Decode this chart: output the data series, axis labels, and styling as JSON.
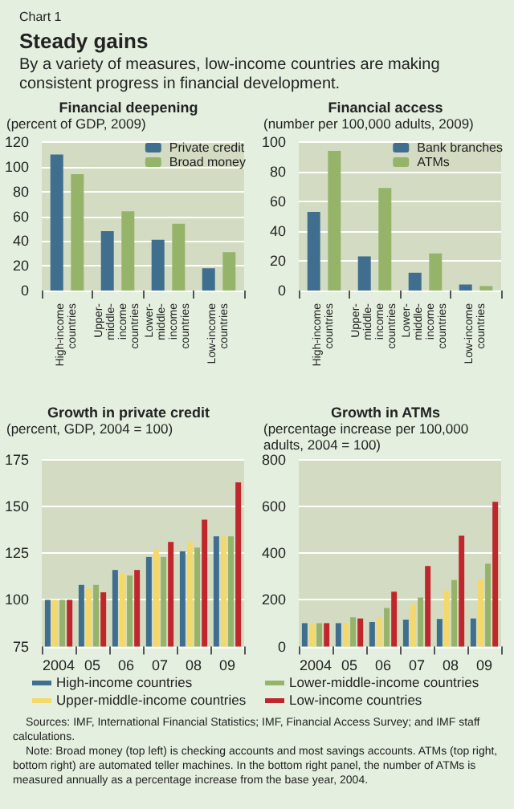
{
  "chart_data": [
    {
      "type": "bar",
      "title": "Financial deepening",
      "ylabel": "(percent of GDP, 2009)",
      "annotations": [
        "Chart 1",
        "Steady gains",
        "By a variety of measures, low-income countries are making consistent progress in financial development."
      ],
      "categories": [
        "High-income countries",
        "Upper-middle-income countries",
        "Lower-middle-income countries",
        "Low-income countries"
      ],
      "series": [
        {
          "name": "Private credit",
          "color": "#3f6e8e",
          "values": [
            110,
            48,
            41,
            18
          ]
        },
        {
          "name": "Broad money",
          "color": "#95b46a",
          "values": [
            94,
            64,
            54,
            31
          ]
        }
      ],
      "ylim": [
        0,
        120
      ],
      "yticks": [
        0,
        20,
        40,
        60,
        80,
        100,
        120
      ],
      "grid": "y",
      "legend": "top right"
    },
    {
      "type": "bar",
      "title": "Financial access",
      "ylabel": "(number per 100,000 adults, 2009)",
      "categories": [
        "High-income countries",
        "Upper-middle-income countries",
        "Lower-middle-income countries",
        "Low-income countries"
      ],
      "series": [
        {
          "name": "Bank branches",
          "color": "#3f6e8e",
          "values": [
            53,
            23,
            12,
            4
          ]
        },
        {
          "name": "ATMs",
          "color": "#95b46a",
          "values": [
            94,
            69,
            25,
            3
          ]
        }
      ],
      "ylim": [
        0,
        100
      ],
      "yticks": [
        0,
        20,
        40,
        60,
        80,
        100
      ],
      "grid": "y",
      "legend": "top right"
    },
    {
      "type": "bar",
      "title": "Growth in private credit",
      "ylabel": "(percent, GDP, 2004 = 100)",
      "categories": [
        "2004",
        "05",
        "06",
        "07",
        "08",
        "09"
      ],
      "series": [
        {
          "name": "High-income countries",
          "color": "#3f6e8e",
          "values": [
            100,
            108,
            116,
            123,
            126,
            134
          ]
        },
        {
          "name": "Upper-middle-income countries",
          "color": "#f5d86a",
          "values": [
            100,
            106,
            114,
            127,
            131,
            134
          ]
        },
        {
          "name": "Lower-middle-income countries",
          "color": "#95b46a",
          "values": [
            100,
            108,
            113,
            123,
            128,
            134
          ]
        },
        {
          "name": "Low-income countries",
          "color": "#c0272d",
          "values": [
            100,
            104,
            116,
            131,
            143,
            163
          ]
        }
      ],
      "ylim": [
        75,
        175
      ],
      "yticks": [
        75,
        100,
        125,
        150,
        175
      ],
      "grid": "y",
      "legend": "bottom"
    },
    {
      "type": "bar",
      "title": "Growth in ATMs",
      "ylabel": "(percentage increase per 100,000 adults, 2004 = 100)",
      "annotations": [
        "Sources: IMF, International Financial Statistics; IMF, Financial Access Survey; and IMF staff calculations.",
        "Note: Broad money (top left) is checking accounts and most savings accounts. ATMs (top right, bottom right) are automated teller machines. In the bottom right panel, the number of ATMs is measured annually as a percentage increase from the base year, 2004."
      ],
      "categories": [
        "2004",
        "05",
        "06",
        "07",
        "08",
        "09"
      ],
      "series": [
        {
          "color": "#3f6e8e",
          "values": [
            100,
            100,
            105,
            115,
            118,
            120
          ]
        },
        {
          "color": "#f5d86a",
          "values": [
            95,
            100,
            125,
            180,
            240,
            285
          ]
        },
        {
          "color": "#95b46a",
          "values": [
            100,
            125,
            165,
            210,
            285,
            355
          ]
        },
        {
          "color": "#c0272d",
          "values": [
            100,
            120,
            235,
            345,
            475,
            620
          ]
        }
      ],
      "ylim": [
        0,
        800
      ],
      "yticks": [
        0,
        200,
        400,
        600,
        800
      ],
      "grid": "y"
    }
  ]
}
